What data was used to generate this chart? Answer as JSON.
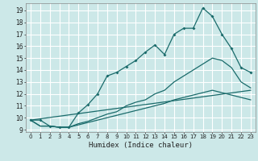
{
  "title": "",
  "xlabel": "Humidex (Indice chaleur)",
  "bg_color": "#cce8e8",
  "line_color": "#1a6b6b",
  "grid_color": "#ffffff",
  "xlim": [
    -0.5,
    23.5
  ],
  "ylim": [
    8.8,
    19.6
  ],
  "yticks": [
    9,
    10,
    11,
    12,
    13,
    14,
    15,
    16,
    17,
    18,
    19
  ],
  "xticks": [
    0,
    1,
    2,
    3,
    4,
    5,
    6,
    7,
    8,
    9,
    10,
    11,
    12,
    13,
    14,
    15,
    16,
    17,
    18,
    19,
    20,
    21,
    22,
    23
  ],
  "series": [
    {
      "x": [
        0,
        1,
        2,
        3,
        4,
        5,
        6,
        7,
        8,
        9,
        10,
        11,
        12,
        13,
        14,
        15,
        16,
        17,
        18,
        19,
        20,
        21,
        22,
        23
      ],
      "y": [
        9.8,
        9.8,
        9.3,
        9.2,
        9.2,
        10.4,
        11.1,
        12.0,
        13.5,
        13.8,
        14.3,
        14.8,
        15.5,
        16.1,
        15.3,
        17.0,
        17.5,
        17.5,
        19.2,
        18.5,
        17.0,
        15.8,
        14.2,
        13.8
      ],
      "marker": true
    },
    {
      "x": [
        0,
        1,
        2,
        3,
        4,
        5,
        6,
        7,
        8,
        9,
        10,
        11,
        12,
        13,
        14,
        15,
        16,
        17,
        18,
        19,
        20,
        21,
        22,
        23
      ],
      "y": [
        9.8,
        9.3,
        9.3,
        9.2,
        9.2,
        9.5,
        9.7,
        10.0,
        10.3,
        10.5,
        11.0,
        11.3,
        11.5,
        12.0,
        12.3,
        13.0,
        13.5,
        14.0,
        14.5,
        15.0,
        14.8,
        14.2,
        13.0,
        12.5
      ],
      "marker": false
    },
    {
      "x": [
        0,
        1,
        2,
        3,
        4,
        5,
        6,
        7,
        8,
        9,
        10,
        11,
        12,
        13,
        14,
        15,
        16,
        17,
        18,
        19,
        20,
        21,
        22,
        23
      ],
      "y": [
        9.8,
        9.3,
        9.3,
        9.2,
        9.2,
        9.4,
        9.6,
        9.8,
        10.0,
        10.2,
        10.4,
        10.6,
        10.8,
        11.0,
        11.2,
        11.5,
        11.7,
        11.9,
        12.1,
        12.3,
        12.1,
        11.9,
        11.7,
        11.5
      ],
      "marker": false
    },
    {
      "x": [
        0,
        23
      ],
      "y": [
        9.8,
        12.3
      ],
      "marker": false
    }
  ]
}
